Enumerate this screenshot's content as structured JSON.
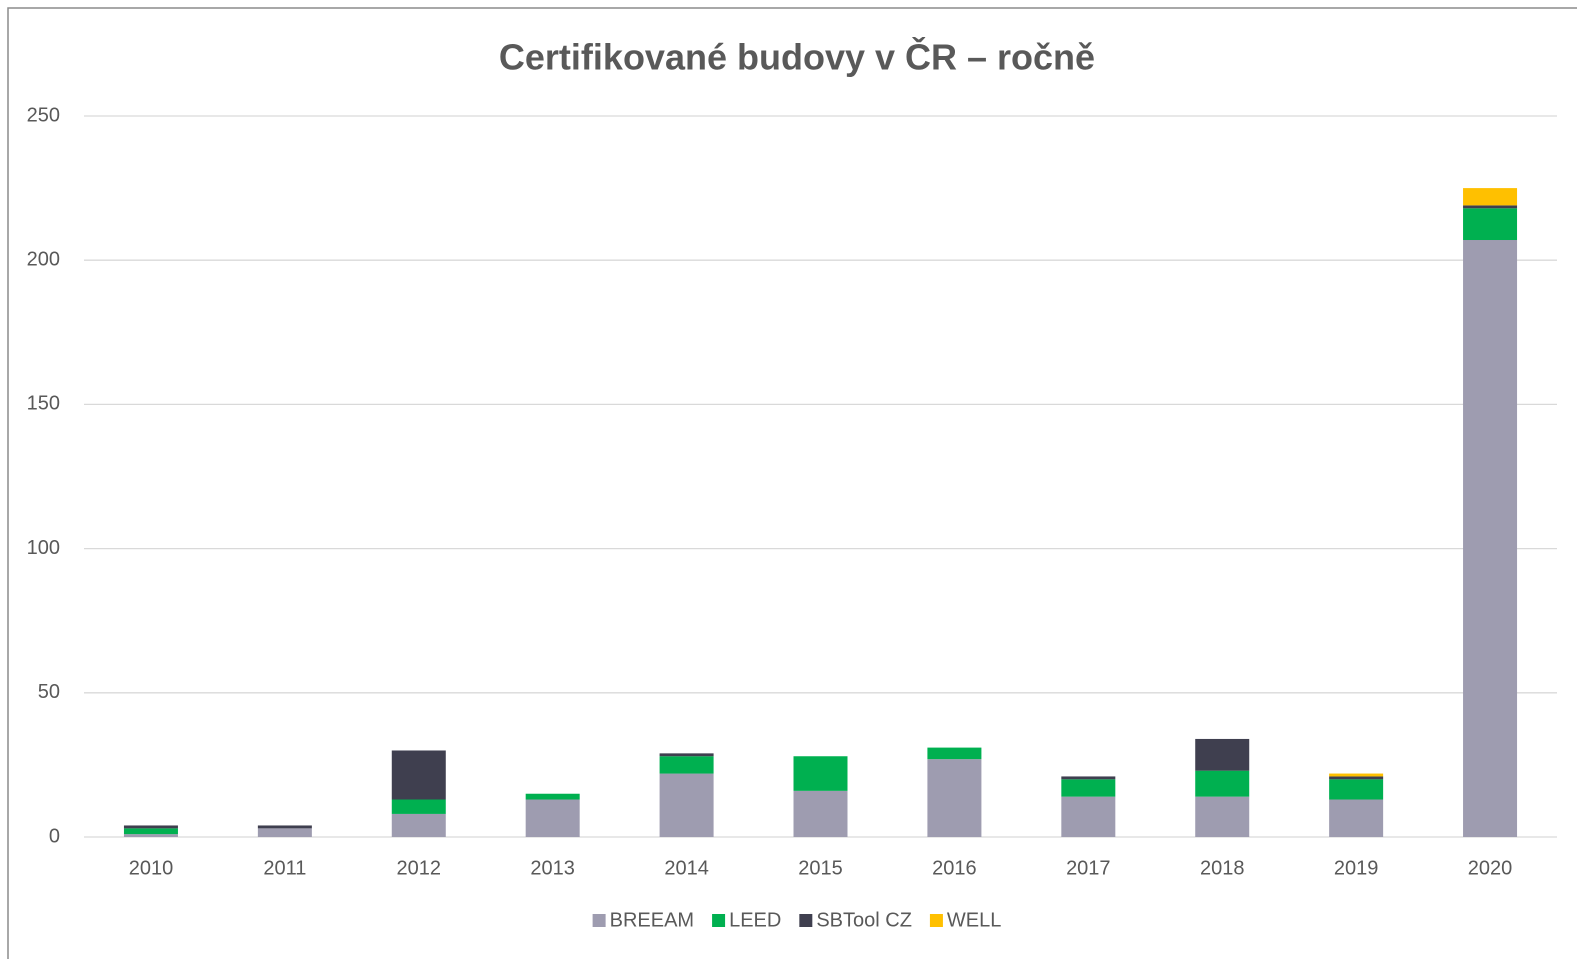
{
  "chart_data": {
    "type": "stacked_bar",
    "title": "Certifikované budovy v ČR – ročně",
    "categories": [
      "2010",
      "2011",
      "2012",
      "2013",
      "2014",
      "2015",
      "2016",
      "2017",
      "2018",
      "2019",
      "2020"
    ],
    "series": [
      {
        "name": "BREEAM",
        "color": "#9e9cb0",
        "values": [
          1,
          3,
          8,
          13,
          22,
          16,
          27,
          14,
          14,
          13,
          207
        ]
      },
      {
        "name": "LEED",
        "color": "#00b050",
        "values": [
          2,
          0,
          5,
          2,
          6,
          12,
          4,
          6,
          9,
          7,
          11
        ]
      },
      {
        "name": "SBTool CZ",
        "color": "#3f3f4f",
        "values": [
          1,
          1,
          17,
          0,
          1,
          0,
          0,
          1,
          11,
          1,
          1
        ]
      },
      {
        "name": "WELL",
        "color": "#ffc000",
        "values": [
          0,
          0,
          0,
          0,
          0,
          0,
          0,
          0,
          0,
          1,
          6
        ]
      }
    ],
    "ylim": [
      0,
      250
    ],
    "yticks": [
      0,
      50,
      100,
      150,
      200,
      250
    ],
    "grid": true,
    "legend": "bottom"
  }
}
